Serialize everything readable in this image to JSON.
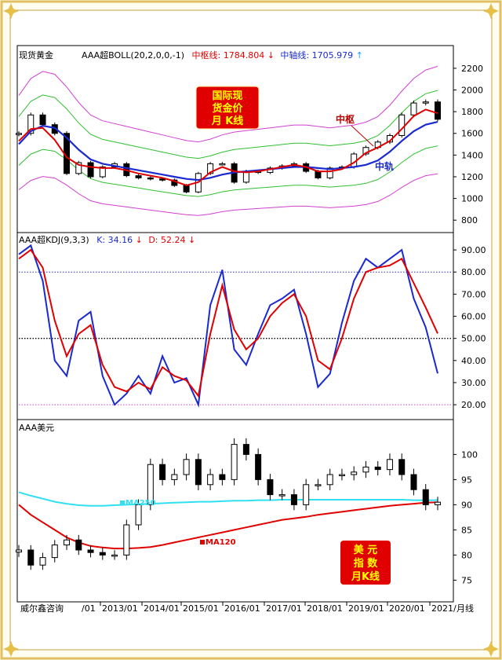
{
  "colors": {
    "frame_gold": "#d8b040",
    "upper_band": "#d040d0",
    "inner_band": "#30c030",
    "middle_line": "#1a2ad0",
    "pivot_line": "#e00000",
    "k_line": "#1a2ad0",
    "d_line": "#e00000",
    "ma250": "#30e0f0",
    "ma120": "#e00000",
    "badge_red": "#e00000",
    "badge_yellow": "#ffff00"
  },
  "watermark": "威尔鑫咨询",
  "period_label": "月线",
  "x_axis_ticks": [
    "/01",
    "2013/01",
    "2014/01",
    "2015/01",
    "2016/01",
    "2017/01",
    "2018/01",
    "2019/01",
    "2020/01",
    "2021/"
  ],
  "gold_panel": {
    "title": "现货黄金",
    "indicator": "AAA超BOLL(20,2,0,0,-1)",
    "pivot_text": "中枢线: 1784.804",
    "pivot_arrow": "↓",
    "axis_text": "中轴线: 1705.979",
    "axis_arrow": "↑",
    "badge_lines": [
      "国际现",
      "货金价",
      "月 K线"
    ],
    "annotation_pivot": "中枢",
    "annotation_axis": "中轨"
  },
  "kdj_panel": {
    "indicator": "AAA超KDJ(9,3,3)",
    "k_text": "K: 34.16",
    "k_arrow": "↓",
    "d_text": "D: 52.24",
    "d_arrow": "↓"
  },
  "usd_panel": {
    "title": "AAA美元",
    "ma250_label": "MA250",
    "ma120_label": "MA120",
    "badge_lines": [
      "美 元",
      "指 数",
      "月K线"
    ]
  },
  "chart_data": [
    {
      "type": "candlestick",
      "name": "gold_monthly",
      "x": [
        "2012/06",
        "2012/09",
        "2012/12",
        "2013/03",
        "2013/06",
        "2013/09",
        "2013/12",
        "2014/03",
        "2014/06",
        "2014/09",
        "2014/12",
        "2015/03",
        "2015/06",
        "2015/09",
        "2015/12",
        "2016/03",
        "2016/06",
        "2016/09",
        "2016/12",
        "2017/03",
        "2017/06",
        "2017/09",
        "2017/12",
        "2018/03",
        "2018/06",
        "2018/09",
        "2018/12",
        "2019/03",
        "2019/06",
        "2019/09",
        "2019/12",
        "2020/03",
        "2020/06",
        "2020/09",
        "2020/12",
        "2021/02"
      ],
      "close": [
        1600,
        1770,
        1680,
        1600,
        1230,
        1330,
        1200,
        1290,
        1320,
        1210,
        1190,
        1180,
        1170,
        1120,
        1060,
        1230,
        1320,
        1320,
        1150,
        1250,
        1240,
        1280,
        1300,
        1320,
        1250,
        1190,
        1280,
        1290,
        1410,
        1470,
        1520,
        1580,
        1770,
        1880,
        1890,
        1730
      ],
      "ylim": [
        700,
        2250
      ],
      "yticks": [
        800,
        1000,
        1200,
        1400,
        1600,
        1800,
        2000,
        2200
      ],
      "series": [
        {
          "name": "中枢线",
          "values": [
            1530,
            1640,
            1650,
            1540,
            1380,
            1310,
            1290,
            1280,
            1280,
            1260,
            1230,
            1210,
            1190,
            1160,
            1120,
            1150,
            1240,
            1290,
            1250,
            1240,
            1250,
            1270,
            1290,
            1310,
            1290,
            1250,
            1250,
            1270,
            1330,
            1420,
            1470,
            1530,
            1640,
            1760,
            1820,
            1785
          ]
        },
        {
          "name": "中轴线",
          "values": [
            1500,
            1620,
            1670,
            1650,
            1560,
            1450,
            1360,
            1320,
            1300,
            1280,
            1260,
            1240,
            1220,
            1200,
            1180,
            1170,
            1190,
            1220,
            1240,
            1250,
            1260,
            1270,
            1280,
            1290,
            1290,
            1280,
            1270,
            1280,
            1290,
            1310,
            1350,
            1430,
            1530,
            1620,
            1680,
            1706
          ]
        }
      ],
      "grid": false
    },
    {
      "type": "line",
      "name": "kdj",
      "x": [
        "2012/06",
        "2012/09",
        "2012/12",
        "2013/03",
        "2013/06",
        "2013/09",
        "2013/12",
        "2014/03",
        "2014/06",
        "2014/09",
        "2014/12",
        "2015/03",
        "2015/06",
        "2015/09",
        "2015/12",
        "2016/03",
        "2016/06",
        "2016/09",
        "2016/12",
        "2017/03",
        "2017/06",
        "2017/09",
        "2017/12",
        "2018/03",
        "2018/06",
        "2018/09",
        "2018/12",
        "2019/03",
        "2019/06",
        "2019/09",
        "2019/12",
        "2020/03",
        "2020/06",
        "2020/09",
        "2020/12",
        "2021/02"
      ],
      "ylim": [
        14,
        95
      ],
      "yticks": [
        20,
        30,
        40,
        50,
        60,
        70,
        80,
        90
      ],
      "reference_lines": [
        20,
        50,
        80
      ],
      "series": [
        {
          "name": "K",
          "values": [
            88,
            92,
            76,
            40,
            33,
            58,
            62,
            33,
            20,
            25,
            33,
            25,
            42,
            30,
            32,
            20,
            65,
            81,
            45,
            38,
            52,
            65,
            68,
            72,
            52,
            28,
            34,
            57,
            76,
            86,
            82,
            86,
            90,
            68,
            55,
            34.16
          ]
        },
        {
          "name": "D",
          "values": [
            86,
            90,
            82,
            58,
            42,
            52,
            56,
            38,
            28,
            26,
            30,
            27,
            37,
            33,
            31,
            24,
            52,
            74,
            54,
            45,
            50,
            60,
            66,
            70,
            60,
            40,
            36,
            50,
            68,
            80,
            82,
            83,
            86,
            75,
            64,
            52.24
          ]
        }
      ]
    },
    {
      "type": "candlestick",
      "name": "usd_index_monthly",
      "x": [
        "2012/06",
        "2012/09",
        "2012/12",
        "2013/03",
        "2013/06",
        "2013/09",
        "2013/12",
        "2014/03",
        "2014/06",
        "2014/09",
        "2014/12",
        "2015/03",
        "2015/06",
        "2015/09",
        "2015/12",
        "2016/03",
        "2016/06",
        "2016/09",
        "2016/12",
        "2017/03",
        "2017/06",
        "2017/09",
        "2017/12",
        "2018/03",
        "2018/06",
        "2018/09",
        "2018/12",
        "2019/03",
        "2019/06",
        "2019/09",
        "2019/12",
        "2020/03",
        "2020/06",
        "2020/09",
        "2020/12",
        "2021/02"
      ],
      "close": [
        81,
        78,
        79.5,
        82,
        83,
        81,
        80.5,
        80,
        80,
        86,
        90,
        98,
        95,
        96,
        99,
        94,
        96,
        95,
        102,
        100,
        95,
        92,
        92,
        90,
        94,
        94,
        96,
        96,
        96.5,
        97.5,
        97,
        99,
        96,
        93,
        90,
        90.5
      ],
      "ylim": [
        71,
        106
      ],
      "yticks": [
        75,
        80,
        85,
        90,
        95,
        100
      ],
      "series": [
        {
          "name": "MA250",
          "values": [
            92.5,
            91.8,
            91.2,
            90.6,
            90.2,
            89.9,
            89.8,
            89.8,
            89.9,
            90.0,
            90.1,
            90.2,
            90.3,
            90.4,
            90.5,
            90.6,
            90.6,
            90.7,
            90.8,
            90.8,
            90.9,
            90.9,
            91.0,
            91.0,
            91.0,
            91.0,
            91.0,
            91.0,
            91.0,
            91.0,
            91.0,
            91.0,
            91.0,
            90.9,
            90.9,
            90.9
          ]
        },
        {
          "name": "MA120",
          "values": [
            90,
            88,
            86.5,
            85,
            83.5,
            82.5,
            81.8,
            81.5,
            81.3,
            81.3,
            81.4,
            81.6,
            82,
            82.5,
            83,
            83.5,
            84,
            84.5,
            85,
            85.5,
            86,
            86.5,
            87,
            87.3,
            87.6,
            88,
            88.3,
            88.6,
            88.9,
            89.2,
            89.5,
            89.8,
            90,
            90.2,
            90.4,
            90.5
          ]
        }
      ],
      "grid": false
    }
  ]
}
